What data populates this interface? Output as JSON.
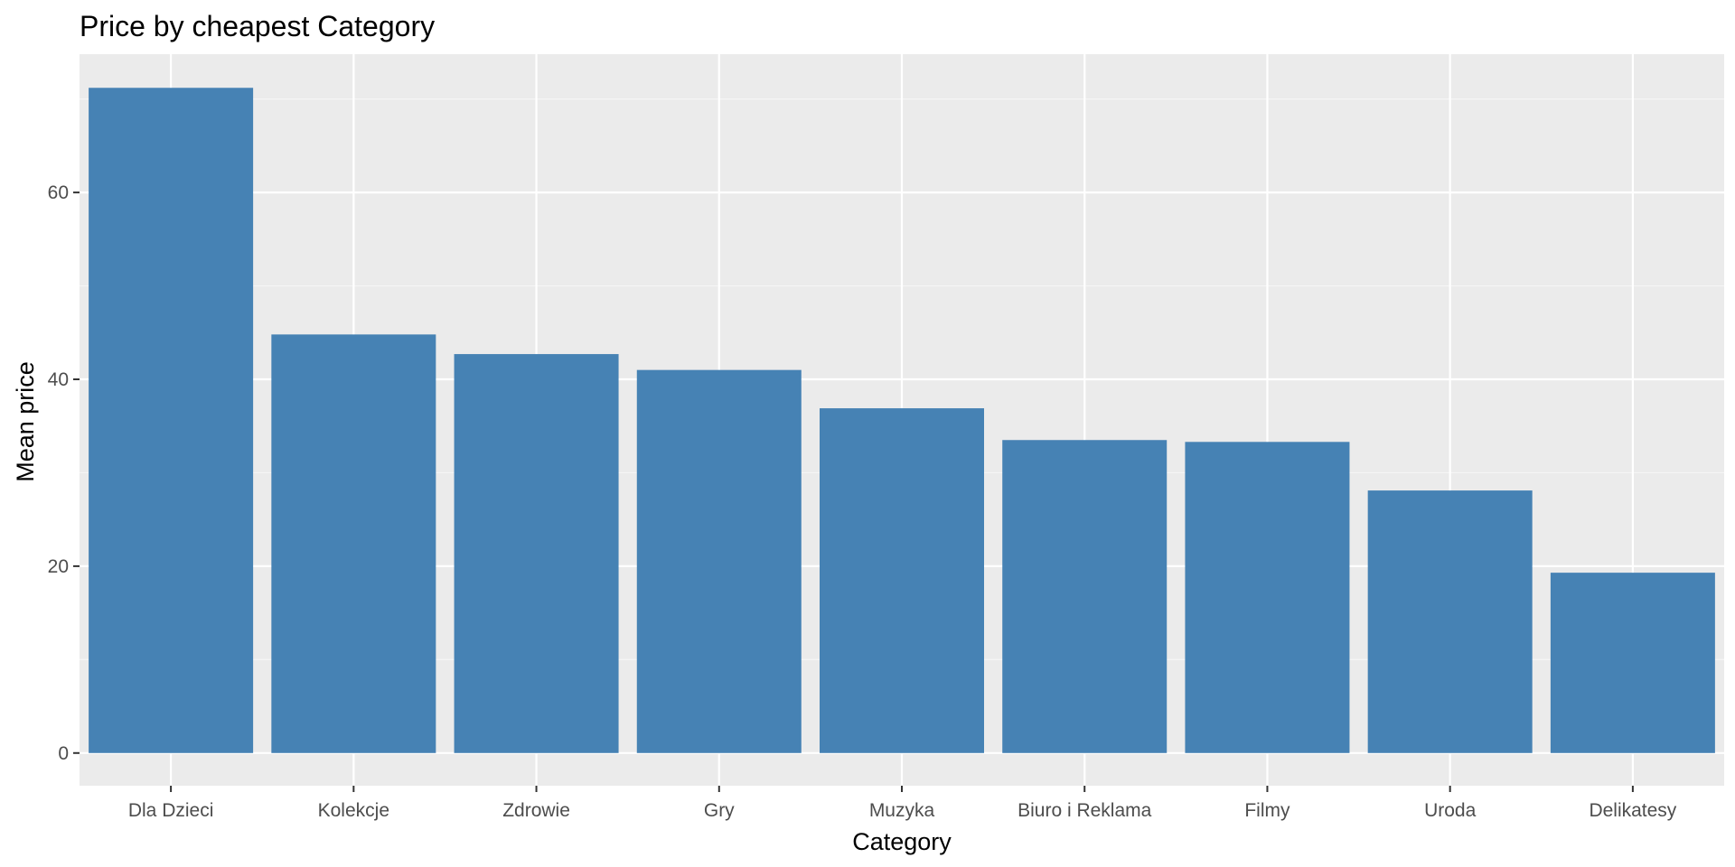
{
  "chart_data": {
    "type": "bar",
    "title": "Price by cheapest Category",
    "xlabel": "Category",
    "ylabel": "Mean price",
    "categories": [
      "Dla Dzieci",
      "Kolekcje",
      "Zdrowie",
      "Gry",
      "Muzyka",
      "Biuro i Reklama",
      "Filmy",
      "Uroda",
      "Delikatesy"
    ],
    "values": [
      71.2,
      44.8,
      42.7,
      41.0,
      36.9,
      33.5,
      33.3,
      28.1,
      19.3
    ],
    "ylim": [
      -3.5,
      74.8
    ],
    "yticks": [
      0,
      20,
      40,
      60
    ],
    "ytick_labels": [
      "0",
      "20",
      "40",
      "60"
    ],
    "grid": true,
    "legend": "none",
    "colors": {
      "bar": "#4682b4",
      "panel_background": "#ebebeb",
      "grid_major": "#ffffff",
      "grid_minor": "#f5f5f5",
      "tick_text": "#4d4d4d",
      "tick_mark": "#333333"
    }
  }
}
